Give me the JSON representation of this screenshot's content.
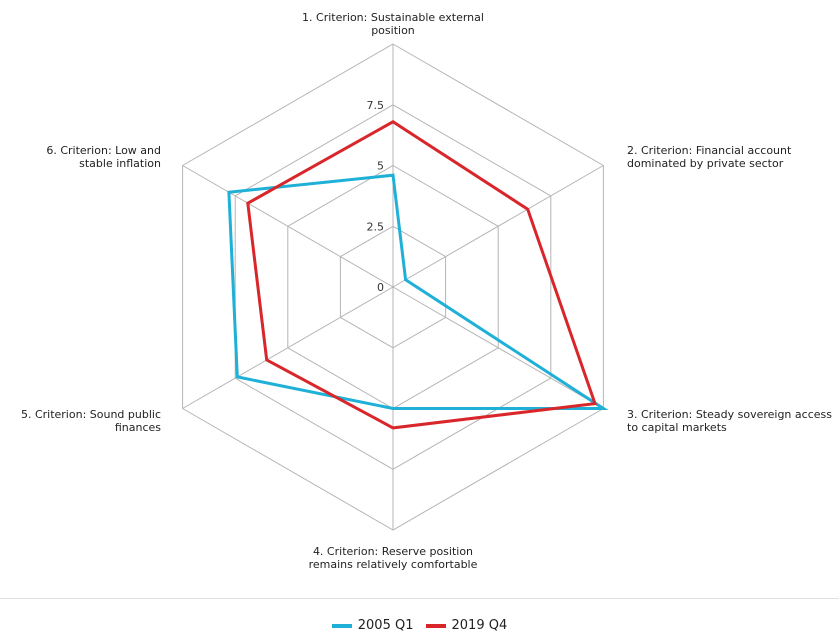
{
  "chart_data": {
    "type": "radar",
    "axes": [
      [
        "1. Criterion: Sustainable external",
        "position"
      ],
      [
        "2. Criterion: Financial account",
        "dominated by private sector"
      ],
      [
        "3. Criterion: Steady sovereign access",
        "to capital markets"
      ],
      [
        "4. Criterion: Reserve position",
        "remains relatively comfortable"
      ],
      [
        "5. Criterion: Sound public",
        "finances"
      ],
      [
        "6. Criterion: Low and",
        "stable inflation"
      ]
    ],
    "ticks": [
      0,
      2.5,
      5,
      7.5,
      10
    ],
    "tick_labels": [
      "0",
      "2.5",
      "5",
      "7.5"
    ],
    "range": [
      0,
      10
    ],
    "series": [
      {
        "name": "2005 Q1",
        "color": "#1fb0d8",
        "values": [
          4.6,
          0.6,
          10.0,
          5.0,
          7.4,
          7.8
        ]
      },
      {
        "name": "2019 Q4",
        "color": "#d9262b",
        "values": [
          6.8,
          6.4,
          9.6,
          5.8,
          6.0,
          6.9
        ]
      }
    ],
    "legend_position": "bottom-center",
    "grid": true
  }
}
